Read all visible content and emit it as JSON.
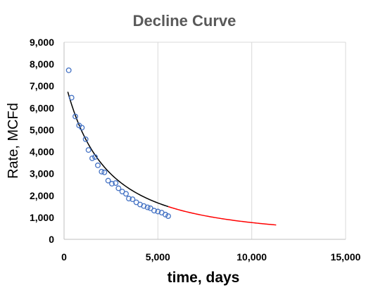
{
  "chart_data": {
    "type": "scatter",
    "title": "Decline Curve",
    "xlabel": "time, days",
    "ylabel": "Rate, MCFd",
    "xlim": [
      0,
      15000
    ],
    "ylim": [
      0,
      9000
    ],
    "x_ticks": [
      "0",
      "5,000",
      "10,000",
      "15,000"
    ],
    "y_ticks": [
      "0",
      "1,000",
      "2,000",
      "3,000",
      "4,000",
      "5,000",
      "6,000",
      "7,000",
      "8,000",
      "9,000"
    ],
    "x_tick_values": [
      0,
      5000,
      10000,
      15000
    ],
    "y_tick_values": [
      0,
      1000,
      2000,
      3000,
      4000,
      5000,
      6000,
      7000,
      8000,
      9000
    ],
    "grid": "vertical",
    "legend": "none",
    "series": [
      {
        "kind": "scatter",
        "color": "#4472c4",
        "marker": "open-circle",
        "points": [
          [
            250,
            7720
          ],
          [
            400,
            6470
          ],
          [
            600,
            5610
          ],
          [
            800,
            5200
          ],
          [
            950,
            5100
          ],
          [
            1150,
            4570
          ],
          [
            1300,
            4080
          ],
          [
            1500,
            3700
          ],
          [
            1650,
            3760
          ],
          [
            1800,
            3380
          ],
          [
            2000,
            3090
          ],
          [
            2150,
            3060
          ],
          [
            2350,
            2680
          ],
          [
            2550,
            2540
          ],
          [
            2750,
            2570
          ],
          [
            2900,
            2330
          ],
          [
            3100,
            2180
          ],
          [
            3300,
            2080
          ],
          [
            3450,
            1860
          ],
          [
            3650,
            1830
          ],
          [
            3850,
            1690
          ],
          [
            4050,
            1590
          ],
          [
            4250,
            1520
          ],
          [
            4450,
            1460
          ],
          [
            4600,
            1420
          ],
          [
            4800,
            1310
          ],
          [
            5000,
            1270
          ],
          [
            5200,
            1220
          ],
          [
            5400,
            1130
          ],
          [
            5550,
            1060
          ]
        ]
      },
      {
        "kind": "line",
        "color": "#000000",
        "x_range": [
          200,
          5550
        ],
        "fit": {
          "qi": 7400,
          "di": 0.000484,
          "b": 0.6
        }
      },
      {
        "kind": "line",
        "color": "#ff0000",
        "x_range": [
          5550,
          11300
        ],
        "fit": {
          "qi": 7400,
          "di": 0.000484,
          "b": 0.6
        }
      }
    ]
  }
}
